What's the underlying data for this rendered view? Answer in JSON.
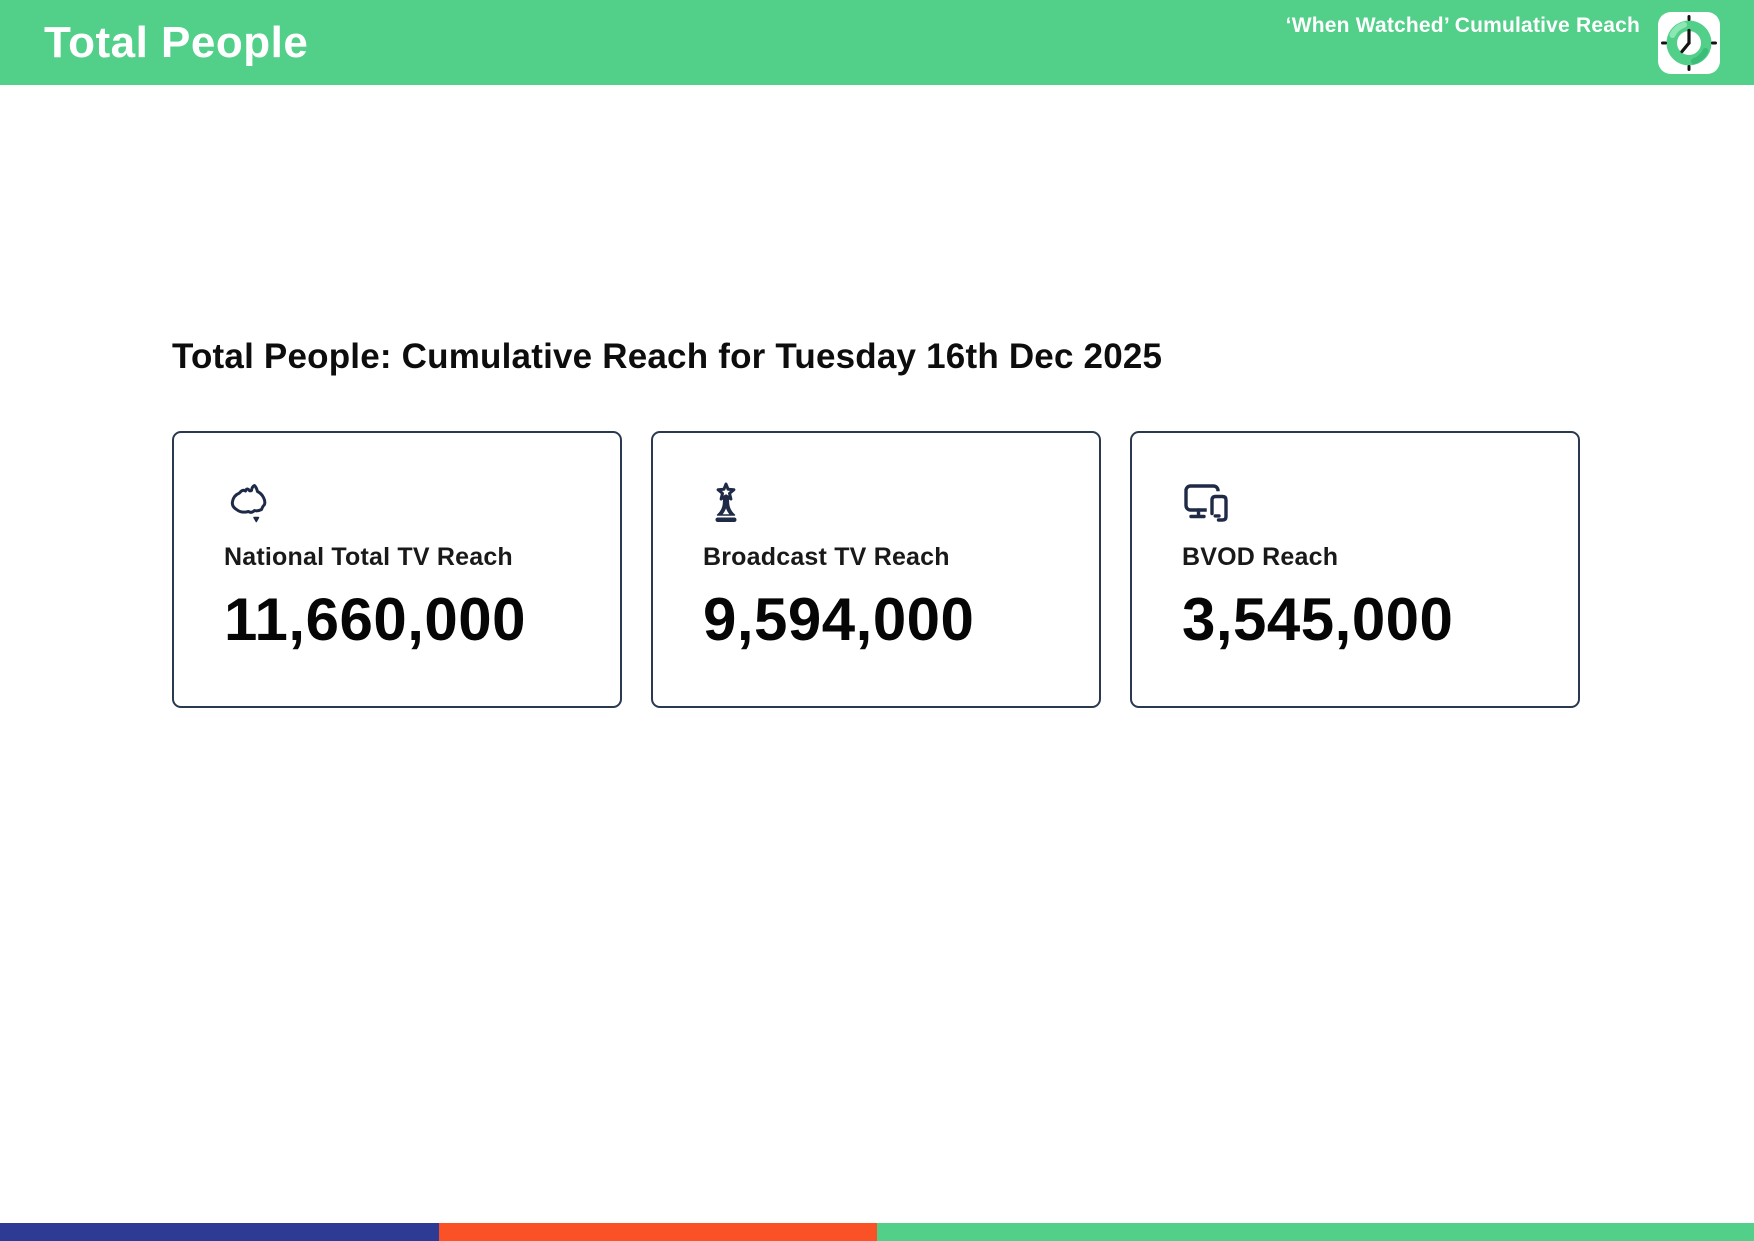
{
  "header": {
    "title": "Total People",
    "right_label": "‘When Watched’ Cumulative Reach",
    "logo": "clock-icon"
  },
  "main": {
    "heading": "Total People: Cumulative Reach for Tuesday 16th Dec 2025"
  },
  "metrics": [
    {
      "label": "National Total TV Reach",
      "value": "11,660,000",
      "icon": "australia-map-icon"
    },
    {
      "label": "Broadcast TV Reach",
      "value": "9,594,000",
      "icon": "broadcast-tower-icon"
    },
    {
      "label": "BVOD Reach",
      "value": "3,545,000",
      "icon": "monitor-smartphone-icon"
    }
  ],
  "chart_data": {
    "type": "table",
    "title": "Total People: Cumulative Reach for Tuesday 16th Dec 2025",
    "categories": [
      "National Total TV Reach",
      "Broadcast TV Reach",
      "BVOD Reach"
    ],
    "values": [
      11660000,
      9594000,
      3545000
    ]
  },
  "footer": {
    "segments": [
      {
        "name": "blue-segment",
        "color": "#2E3B94",
        "width_pct": 25
      },
      {
        "name": "orange-segment",
        "color": "#FA5226",
        "width_pct": 25
      },
      {
        "name": "green-segment",
        "color": "#52D089",
        "width_pct": 50
      }
    ]
  },
  "colors": {
    "accent-green": "#52D089",
    "icon-navy": "#1F2A47",
    "card-border": "#2A3950",
    "clock-ring-light": "#8CE7B4",
    "clock-hands": "#141414"
  }
}
